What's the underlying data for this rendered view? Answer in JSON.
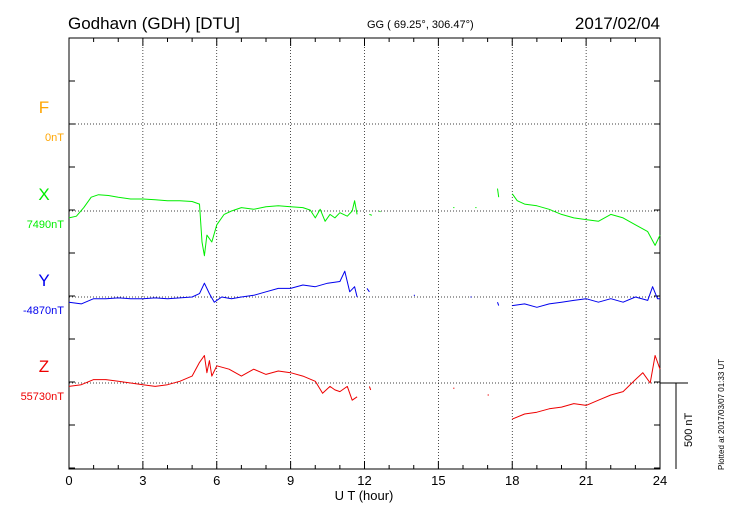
{
  "header": {
    "station": "Godhavn (GDH)  [DTU]",
    "coords": "GG ( 69.25°, 306.47°)",
    "date": "2017/02/04"
  },
  "footer": {
    "xlabel": "U T (hour)",
    "plotted_note": "Plotted at 2017/03/07 01:33 UT",
    "scale_label": "500 nT"
  },
  "colors": {
    "F": "#ffa500",
    "X": "#00ee00",
    "Y": "#0000ee",
    "Z": "#ee0000",
    "axis": "#000000",
    "grid": "#000000"
  },
  "components": [
    {
      "name": "F",
      "baseline_label": "0nT",
      "color": "#ffa500"
    },
    {
      "name": "X",
      "baseline_label": "7490nT",
      "color": "#00ee00"
    },
    {
      "name": "Y",
      "baseline_label": "-4870nT",
      "color": "#0000ee"
    },
    {
      "name": "Z",
      "baseline_label": "55730nT",
      "color": "#ee0000"
    }
  ],
  "chart_data": {
    "type": "line",
    "title": "Godhavn (GDH)  [DTU]",
    "xlabel": "U T (hour)",
    "ylabel": "",
    "xlim": [
      0,
      24
    ],
    "xticks": [
      0,
      3,
      6,
      9,
      12,
      15,
      18,
      21,
      24
    ],
    "grid": true,
    "scale_bar_nT": 500,
    "series": [
      {
        "name": "X",
        "baseline_nT": 7490,
        "color": "#00ee00",
        "segments": [
          [
            [
              0,
              -40
            ],
            [
              0.3,
              -30
            ],
            [
              0.6,
              20
            ],
            [
              0.9,
              80
            ],
            [
              1.2,
              95
            ],
            [
              1.6,
              90
            ],
            [
              2.0,
              80
            ],
            [
              2.5,
              70
            ],
            [
              3.0,
              70
            ],
            [
              3.5,
              65
            ],
            [
              4.0,
              60
            ],
            [
              4.5,
              60
            ],
            [
              5.0,
              55
            ],
            [
              5.3,
              40
            ],
            [
              5.4,
              -180
            ],
            [
              5.5,
              -260
            ],
            [
              5.6,
              -140
            ],
            [
              5.8,
              -180
            ],
            [
              6.0,
              -80
            ],
            [
              6.3,
              -20
            ],
            [
              6.6,
              0
            ],
            [
              7.0,
              20
            ],
            [
              7.5,
              10
            ],
            [
              8.0,
              25
            ],
            [
              8.5,
              30
            ],
            [
              9.0,
              25
            ],
            [
              9.5,
              20
            ],
            [
              9.8,
              5
            ],
            [
              10.0,
              -40
            ],
            [
              10.2,
              10
            ],
            [
              10.4,
              -60
            ],
            [
              10.6,
              -20
            ],
            [
              10.8,
              -40
            ],
            [
              11.0,
              -10
            ],
            [
              11.3,
              -30
            ],
            [
              11.5,
              0
            ],
            [
              11.6,
              60
            ],
            [
              11.7,
              -20
            ]
          ],
          [
            [
              12.2,
              -20
            ],
            [
              12.3,
              -25
            ]
          ],
          [
            [
              12.6,
              0
            ],
            [
              12.65,
              -5
            ]
          ],
          [
            [
              15.6,
              20
            ],
            [
              15.65,
              20
            ]
          ],
          [
            [
              16.5,
              20
            ],
            [
              16.55,
              20
            ]
          ],
          [
            [
              17.4,
              130
            ],
            [
              17.45,
              80
            ]
          ],
          [
            [
              18.0,
              100
            ],
            [
              18.2,
              60
            ],
            [
              18.5,
              40
            ],
            [
              19.0,
              30
            ],
            [
              19.5,
              10
            ],
            [
              20.0,
              -20
            ],
            [
              20.5,
              -40
            ],
            [
              21.0,
              -50
            ],
            [
              21.5,
              -60
            ],
            [
              22.0,
              -20
            ],
            [
              22.5,
              -40
            ],
            [
              23.0,
              -80
            ],
            [
              23.5,
              -120
            ],
            [
              23.8,
              -200
            ],
            [
              24.0,
              -140
            ]
          ]
        ]
      },
      {
        "name": "Y",
        "baseline_nT": -4870,
        "color": "#0000ee",
        "segments": [
          [
            [
              0,
              -30
            ],
            [
              0.5,
              -40
            ],
            [
              1.0,
              -10
            ],
            [
              1.5,
              -10
            ],
            [
              2.0,
              -5
            ],
            [
              2.5,
              -10
            ],
            [
              3.0,
              -10
            ],
            [
              3.5,
              -5
            ],
            [
              4.0,
              -10
            ],
            [
              4.5,
              -5
            ],
            [
              5.0,
              0
            ],
            [
              5.3,
              20
            ],
            [
              5.5,
              80
            ],
            [
              5.7,
              20
            ],
            [
              5.9,
              -30
            ],
            [
              6.2,
              0
            ],
            [
              6.6,
              -10
            ],
            [
              7.0,
              0
            ],
            [
              7.5,
              10
            ],
            [
              8.0,
              30
            ],
            [
              8.5,
              50
            ],
            [
              9.0,
              50
            ],
            [
              9.5,
              70
            ],
            [
              10.0,
              60
            ],
            [
              10.5,
              80
            ],
            [
              11.0,
              90
            ],
            [
              11.2,
              150
            ],
            [
              11.4,
              30
            ],
            [
              11.6,
              60
            ],
            [
              11.7,
              0
            ]
          ],
          [
            [
              12.1,
              50
            ],
            [
              12.2,
              30
            ]
          ],
          [
            [
              14.0,
              10
            ],
            [
              14.05,
              10
            ]
          ],
          [
            [
              16.3,
              0
            ],
            [
              16.35,
              0
            ]
          ],
          [
            [
              17.4,
              -30
            ],
            [
              17.45,
              -50
            ]
          ],
          [
            [
              18.0,
              -50
            ],
            [
              18.5,
              -40
            ],
            [
              19.0,
              -60
            ],
            [
              19.5,
              -40
            ],
            [
              20.0,
              -30
            ],
            [
              20.5,
              -20
            ],
            [
              21.0,
              -10
            ],
            [
              21.5,
              -30
            ],
            [
              22.0,
              -10
            ],
            [
              22.5,
              -30
            ],
            [
              23.0,
              0
            ],
            [
              23.5,
              -20
            ],
            [
              23.7,
              60
            ],
            [
              23.9,
              -10
            ],
            [
              24.0,
              -10
            ]
          ]
        ]
      },
      {
        "name": "Z",
        "baseline_nT": 55730,
        "color": "#ee0000",
        "segments": [
          [
            [
              0,
              -20
            ],
            [
              0.5,
              -10
            ],
            [
              1.0,
              20
            ],
            [
              1.5,
              20
            ],
            [
              2.0,
              10
            ],
            [
              2.5,
              0
            ],
            [
              3.0,
              -10
            ],
            [
              3.5,
              -20
            ],
            [
              4.0,
              -10
            ],
            [
              4.5,
              10
            ],
            [
              5.0,
              40
            ],
            [
              5.3,
              120
            ],
            [
              5.5,
              160
            ],
            [
              5.6,
              60
            ],
            [
              5.7,
              130
            ],
            [
              5.8,
              40
            ],
            [
              6.0,
              100
            ],
            [
              6.5,
              80
            ],
            [
              7.0,
              40
            ],
            [
              7.5,
              80
            ],
            [
              8.0,
              50
            ],
            [
              8.5,
              70
            ],
            [
              9.0,
              60
            ],
            [
              9.5,
              40
            ],
            [
              10.0,
              10
            ],
            [
              10.3,
              -60
            ],
            [
              10.6,
              -20
            ],
            [
              10.8,
              -40
            ],
            [
              11.0,
              -50
            ],
            [
              11.3,
              -20
            ],
            [
              11.5,
              -100
            ],
            [
              11.7,
              -80
            ]
          ],
          [
            [
              12.2,
              -20
            ],
            [
              12.25,
              -40
            ]
          ],
          [
            [
              15.6,
              -30
            ],
            [
              15.65,
              -30
            ]
          ],
          [
            [
              17.0,
              -70
            ],
            [
              17.05,
              -70
            ]
          ],
          [
            [
              18.0,
              -210
            ],
            [
              18.5,
              -180
            ],
            [
              19.0,
              -170
            ],
            [
              19.5,
              -150
            ],
            [
              20.0,
              -140
            ],
            [
              20.5,
              -120
            ],
            [
              21.0,
              -130
            ],
            [
              21.5,
              -100
            ],
            [
              22.0,
              -70
            ],
            [
              22.5,
              -50
            ],
            [
              23.0,
              20
            ],
            [
              23.3,
              60
            ],
            [
              23.6,
              0
            ],
            [
              23.8,
              160
            ],
            [
              24.0,
              80
            ]
          ]
        ]
      }
    ]
  }
}
